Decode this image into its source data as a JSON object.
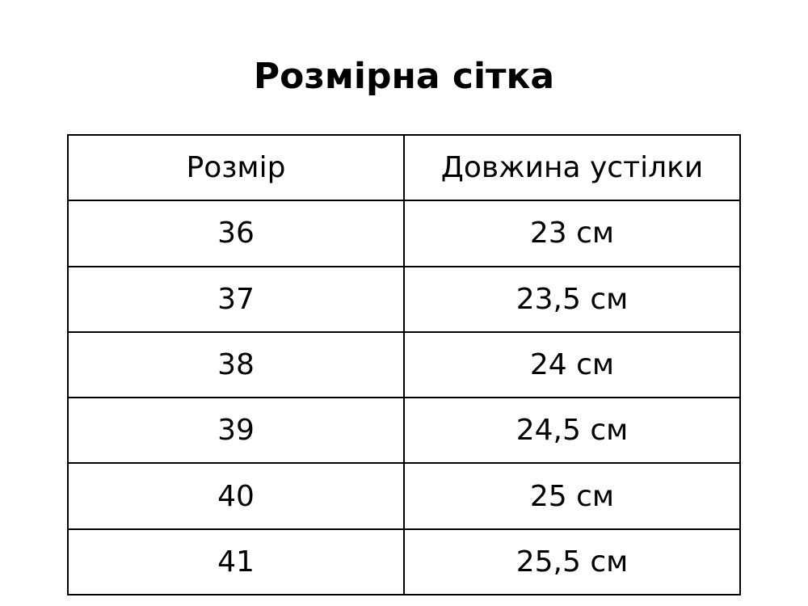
{
  "title": "Розмірна сітка",
  "headers": [
    "Розмір",
    "Довжина устілки"
  ],
  "rows": [
    [
      "36",
      "23 см"
    ],
    [
      "37",
      "23,5 см"
    ],
    [
      "38",
      "24 см"
    ],
    [
      "39",
      "24,5 см"
    ],
    [
      "40",
      "25 см"
    ],
    [
      "41",
      "25,5 см"
    ]
  ]
}
